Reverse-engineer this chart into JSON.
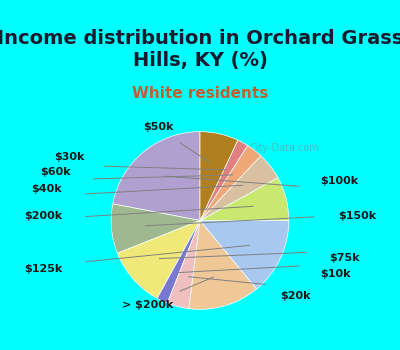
{
  "title": "Income distribution in Orchard Grass\nHills, KY (%)",
  "subtitle": "White residents",
  "background_color": "#00ffff",
  "chart_bg_start": "#e8f5e9",
  "labels": [
    "$100k",
    "$150k",
    "$75k",
    "$10k",
    "$20k",
    "> $200k",
    "$125k",
    "$200k",
    "$40k",
    "$60k",
    "$30k",
    "$50k"
  ],
  "values": [
    22,
    9,
    11,
    2,
    4,
    13,
    14,
    8,
    5,
    3,
    2,
    7
  ],
  "colors": [
    "#b0a0d0",
    "#a0b890",
    "#f0e878",
    "#7878d0",
    "#f0c0c0",
    "#f0c898",
    "#a8c8f0",
    "#c8e870",
    "#d8c0a0",
    "#f0a878",
    "#e08080",
    "#b08020"
  ],
  "title_fontsize": 14,
  "subtitle_fontsize": 11,
  "label_fontsize": 8
}
